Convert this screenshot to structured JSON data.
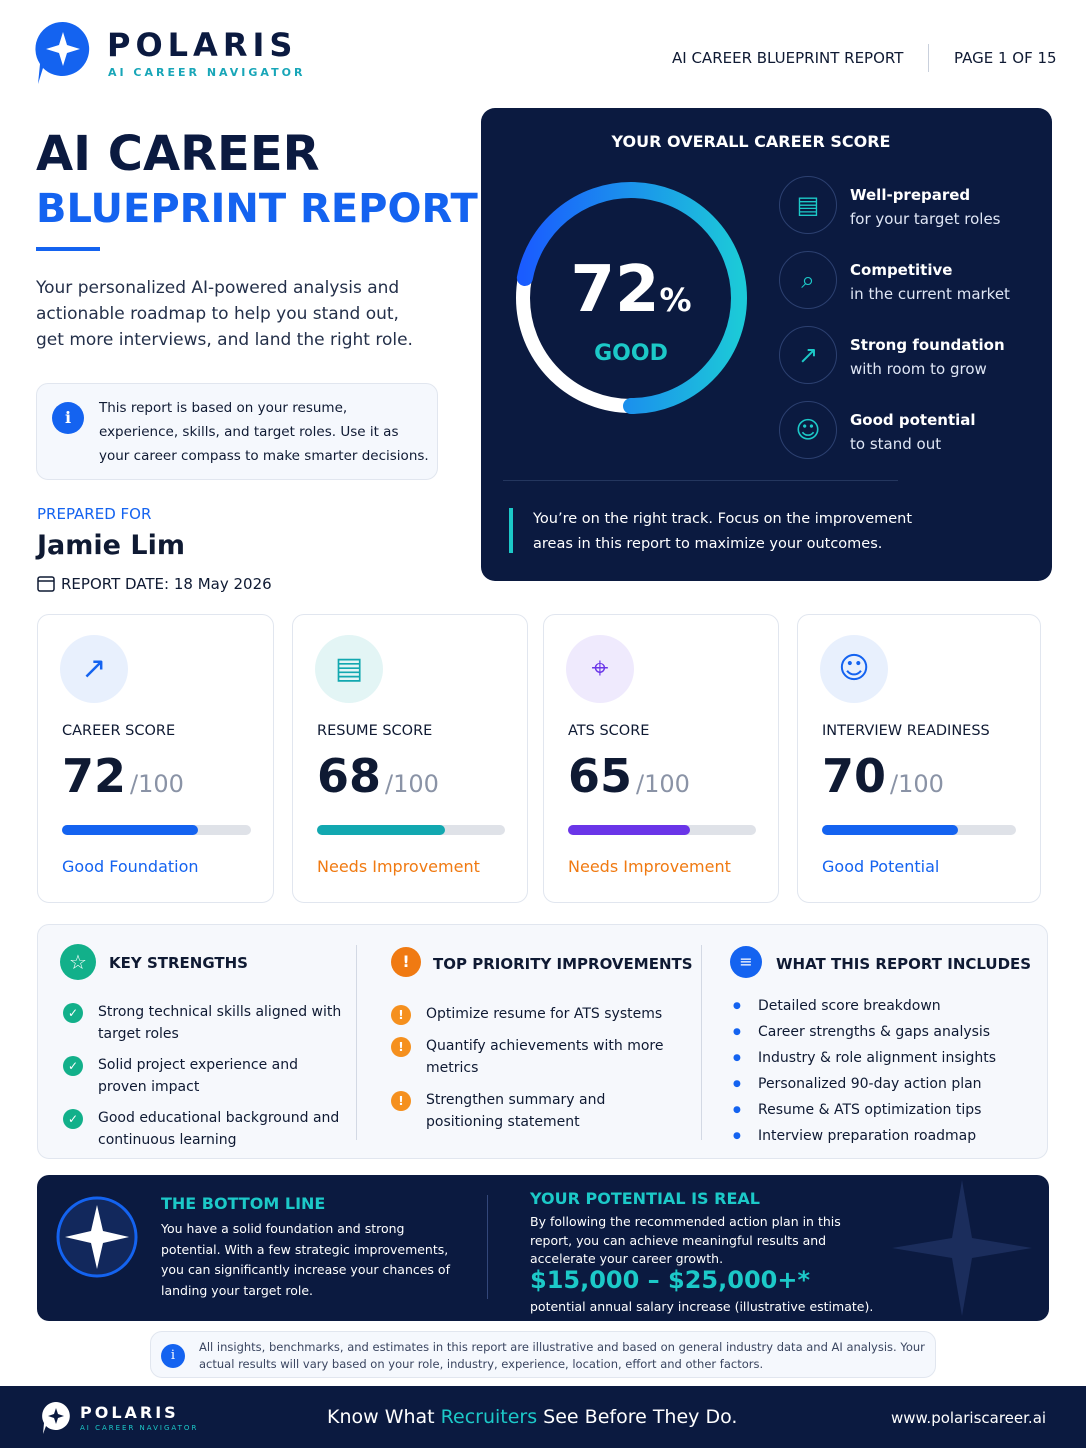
{
  "header": {
    "brand": "POLARIS",
    "tagline": "AI CAREER NAVIGATOR",
    "report_label": "AI CAREER BLUEPRINT REPORT",
    "page": "PAGE 1 OF 15"
  },
  "hero": {
    "title_line1": "AI CAREER",
    "title_line2": "BLUEPRINT REPORT",
    "intro": "Your personalized AI-powered analysis and actionable roadmap to help you stand out, get more interviews, and land the right role.",
    "note": "This report is based on your resume, experience, skills, and target roles. Use it as your career compass to make smarter decisions.",
    "prepared_for_label": "PREPARED FOR",
    "name": "Jamie Lim",
    "report_date": "REPORT DATE: 18 May 2026"
  },
  "score_panel": {
    "heading": "YOUR OVERALL CAREER SCORE",
    "score": {
      "value": 72,
      "unit": "%"
    },
    "rating": "GOOD",
    "items": [
      {
        "title": "Well-prepared",
        "subtitle": "for your target roles"
      },
      {
        "title": "Competitive",
        "subtitle": "in the current market"
      },
      {
        "title": "Strong foundation",
        "subtitle": "with room to grow"
      },
      {
        "title": "Good potential",
        "subtitle": "to stand out"
      }
    ],
    "message": "You’re on the right track. Focus on the improvement areas in this report to maximize your outcomes."
  },
  "cards": [
    {
      "label": "CAREER SCORE",
      "score": 72,
      "out_of": {
        "value": 100,
        "label": "/100"
      },
      "status": "Good Foundation",
      "color": "#1463f0",
      "status_color": "#1463f0"
    },
    {
      "label": "RESUME SCORE",
      "score": 68,
      "out_of": {
        "value": 100,
        "label": "/100"
      },
      "status": "Needs Improvement",
      "color": "#12a8b0",
      "status_color": "#f07a12"
    },
    {
      "label": "ATS SCORE",
      "score": 65,
      "out_of": {
        "value": 100,
        "label": "/100"
      },
      "status": "Needs Improvement",
      "color": "#6a35e8",
      "status_color": "#f07a12"
    },
    {
      "label": "INTERVIEW READINESS",
      "score": 70,
      "out_of": {
        "value": 100,
        "label": "/100"
      },
      "status": "Good Potential",
      "color": "#1463f0",
      "status_color": "#1463f0"
    }
  ],
  "strengths": {
    "title": "KEY STRENGTHS",
    "items": [
      "Strong technical skills aligned with target roles",
      "Solid project experience and proven impact",
      "Good educational background and continuous learning"
    ]
  },
  "improvements": {
    "title": "TOP PRIORITY IMPROVEMENTS",
    "items": [
      "Optimize resume for ATS systems",
      "Quantify achievements with more metrics",
      "Strengthen summary and positioning statement"
    ]
  },
  "includes": {
    "title": "WHAT THIS REPORT INCLUDES",
    "items": [
      "Detailed score breakdown",
      "Career strengths & gaps analysis",
      "Industry & role alignment insights",
      "Personalized 90-day action plan",
      "Resume & ATS optimization tips",
      "Interview preparation roadmap"
    ]
  },
  "bottom": {
    "title": "THE BOTTOM LINE",
    "text": "You have a solid foundation and strong potential. With a few strategic improvements, you can significantly increase your chances of landing your target role.",
    "potential_title": "YOUR POTENTIAL IS REAL",
    "potential_text": "By following the recommended action plan in this report, you can achieve meaningful results and accelerate your career growth.",
    "amount": "$15,000 – $25,000+*",
    "amount_note": "potential annual salary increase (illustrative estimate)."
  },
  "disclaimer": "All insights, benchmarks, and estimates in this report are illustrative and based on general industry data and AI analysis. Your actual results will vary based on your role, industry, experience, location, effort and other factors.",
  "footer": {
    "brand": "POLARIS",
    "tagline": "AI CAREER NAVIGATOR",
    "slogan": [
      "Know What ",
      "Recruiters",
      " See Before They Do."
    ],
    "url": "www.polariscareer.ai"
  }
}
